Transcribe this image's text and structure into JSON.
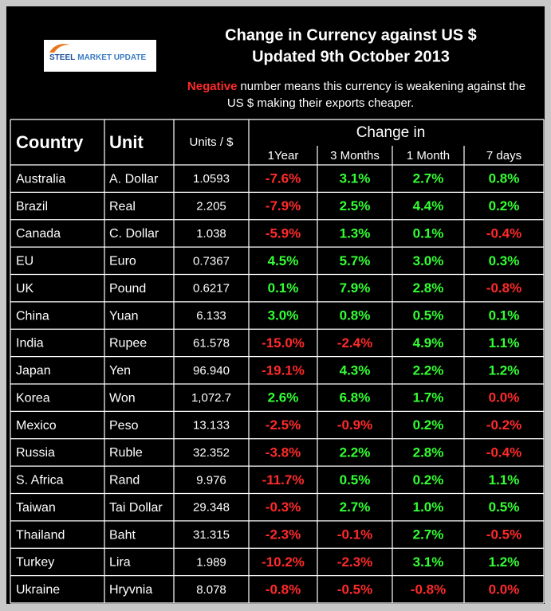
{
  "logo": {
    "first": "STEEL",
    "rest": "MARKET UPDATE"
  },
  "header": {
    "title_line1": "Change in Currency against US $",
    "title_line2": "Updated 9th October 2013"
  },
  "note": {
    "highlight": "Negative",
    "line1": "number means this currency is weakening against the",
    "line2": "US $ making their exports cheaper."
  },
  "table": {
    "columns": {
      "country": "Country",
      "unit": "Unit",
      "rate": "Units / $",
      "change_group": "Change in",
      "changes": [
        "1Year",
        "3 Months",
        "1 Month",
        "7 days"
      ]
    },
    "colors": {
      "positive": "#33ff33",
      "negative": "#ff2a2a"
    },
    "rows": [
      {
        "country": "Australia",
        "unit": "A. Dollar",
        "rate": "1.0593",
        "changes": [
          "-7.6%",
          "3.1%",
          "2.7%",
          "0.8%"
        ],
        "signs": [
          "negative",
          "positive",
          "positive",
          "positive"
        ]
      },
      {
        "country": "Brazil",
        "unit": "Real",
        "rate": "2.205",
        "changes": [
          "-7.9%",
          "2.5%",
          "4.4%",
          "0.2%"
        ],
        "signs": [
          "negative",
          "positive",
          "positive",
          "positive"
        ]
      },
      {
        "country": "Canada",
        "unit": "C. Dollar",
        "rate": "1.038",
        "changes": [
          "-5.9%",
          "1.3%",
          "0.1%",
          "-0.4%"
        ],
        "signs": [
          "negative",
          "positive",
          "positive",
          "negative"
        ]
      },
      {
        "country": "EU",
        "unit": "Euro",
        "rate": "0.7367",
        "changes": [
          "4.5%",
          "5.7%",
          "3.0%",
          "0.3%"
        ],
        "signs": [
          "positive",
          "positive",
          "positive",
          "positive"
        ]
      },
      {
        "country": "UK",
        "unit": "Pound",
        "rate": "0.6217",
        "changes": [
          "0.1%",
          "7.9%",
          "2.8%",
          "-0.8%"
        ],
        "signs": [
          "positive",
          "positive",
          "positive",
          "negative"
        ]
      },
      {
        "country": "China",
        "unit": "Yuan",
        "rate": "6.133",
        "changes": [
          "3.0%",
          "0.8%",
          "0.5%",
          "0.1%"
        ],
        "signs": [
          "positive",
          "positive",
          "positive",
          "positive"
        ]
      },
      {
        "country": "India",
        "unit": "Rupee",
        "rate": "61.578",
        "changes": [
          "-15.0%",
          "-2.4%",
          "4.9%",
          "1.1%"
        ],
        "signs": [
          "negative",
          "negative",
          "positive",
          "positive"
        ]
      },
      {
        "country": "Japan",
        "unit": "Yen",
        "rate": "96.940",
        "changes": [
          "-19.1%",
          "4.3%",
          "2.2%",
          "1.2%"
        ],
        "signs": [
          "negative",
          "positive",
          "positive",
          "positive"
        ]
      },
      {
        "country": "Korea",
        "unit": "Won",
        "rate": "1,072.7",
        "changes": [
          "2.6%",
          "6.8%",
          "1.7%",
          "0.0%"
        ],
        "signs": [
          "positive",
          "positive",
          "positive",
          "negative"
        ]
      },
      {
        "country": "Mexico",
        "unit": "Peso",
        "rate": "13.133",
        "changes": [
          "-2.5%",
          "-0.9%",
          "0.2%",
          "-0.2%"
        ],
        "signs": [
          "negative",
          "negative",
          "positive",
          "negative"
        ]
      },
      {
        "country": "Russia",
        "unit": "Ruble",
        "rate": "32.352",
        "changes": [
          "-3.8%",
          "2.2%",
          "2.8%",
          "-0.4%"
        ],
        "signs": [
          "negative",
          "positive",
          "positive",
          "negative"
        ]
      },
      {
        "country": "S. Africa",
        "unit": "Rand",
        "rate": "9.976",
        "changes": [
          "-11.7%",
          "0.5%",
          "0.2%",
          "1.1%"
        ],
        "signs": [
          "negative",
          "positive",
          "positive",
          "positive"
        ]
      },
      {
        "country": "Taiwan",
        "unit": "Tai Dollar",
        "rate": "29.348",
        "changes": [
          "-0.3%",
          "2.7%",
          "1.0%",
          "0.5%"
        ],
        "signs": [
          "negative",
          "positive",
          "positive",
          "positive"
        ]
      },
      {
        "country": "Thailand",
        "unit": "Baht",
        "rate": "31.315",
        "changes": [
          "-2.3%",
          "-0.1%",
          "2.7%",
          "-0.5%"
        ],
        "signs": [
          "negative",
          "negative",
          "positive",
          "negative"
        ]
      },
      {
        "country": "Turkey",
        "unit": "Lira",
        "rate": "1.989",
        "changes": [
          "-10.2%",
          "-2.3%",
          "3.1%",
          "1.2%"
        ],
        "signs": [
          "negative",
          "negative",
          "positive",
          "positive"
        ]
      },
      {
        "country": "Ukraine",
        "unit": "Hryvnia",
        "rate": "8.078",
        "changes": [
          "-0.8%",
          "-0.5%",
          "-0.8%",
          "0.0%"
        ],
        "signs": [
          "negative",
          "negative",
          "negative",
          "negative"
        ]
      }
    ]
  }
}
